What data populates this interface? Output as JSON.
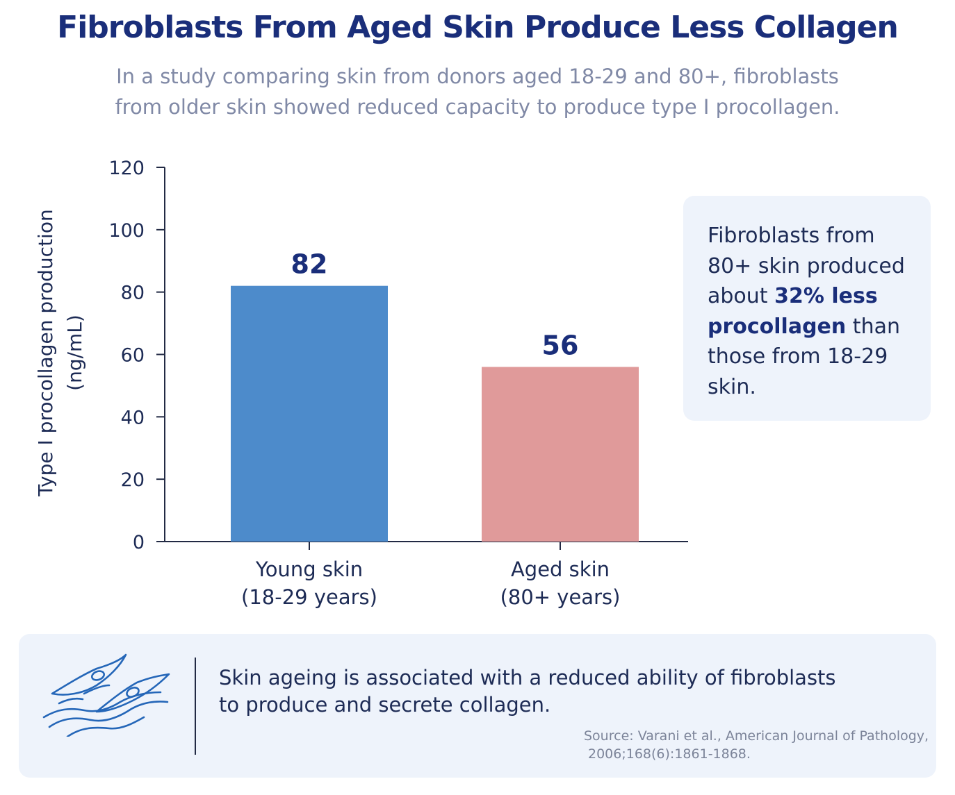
{
  "title": "Fibroblasts From Aged Skin Produce Less Collagen",
  "subtitle_lines": [
    "In a study comparing skin from donors aged 18-29 and 80+, fibroblasts",
    "from older skin showed reduced capacity to produce type I procollagen."
  ],
  "chart_data": {
    "type": "bar",
    "categories": [
      [
        "Young skin",
        "(18-29 years)"
      ],
      [
        "Aged skin",
        "(80+ years)"
      ]
    ],
    "values": [
      82,
      56
    ],
    "data_labels": [
      "82",
      "56"
    ],
    "ylabel_lines": [
      "Type I procollagen production",
      "(ng/mL)"
    ],
    "ylim": [
      0,
      120
    ],
    "yticks": [
      0,
      20,
      40,
      60,
      80,
      100,
      120
    ],
    "grid": false,
    "legend": "none",
    "colors": [
      "#4d8bcb",
      "#e09a9a"
    ]
  },
  "callout": {
    "line1": "Fibroblasts from",
    "line2": "80+ skin produced",
    "line3_pre": "about ",
    "line3_bold": "32% less",
    "line4_bold": "procollagen",
    "line4_post": " than",
    "line5": "those from 18-29",
    "line6": "skin."
  },
  "note_lines": [
    "Skin ageing is associated with a reduced ability of fibroblasts",
    "to produce and secrete collagen."
  ],
  "source_lines": [
    "Source: Varani et al., American Journal of Pathology,",
    "2006;168(6):1861-1868."
  ],
  "icons": {
    "illustration": "fibroblast-cells-icon"
  },
  "colors": {
    "title": "#1a2e7a",
    "accent_blue": "#4d8bcb",
    "accent_pink": "#e09a9a",
    "panel_bg": "#eef3fb"
  }
}
